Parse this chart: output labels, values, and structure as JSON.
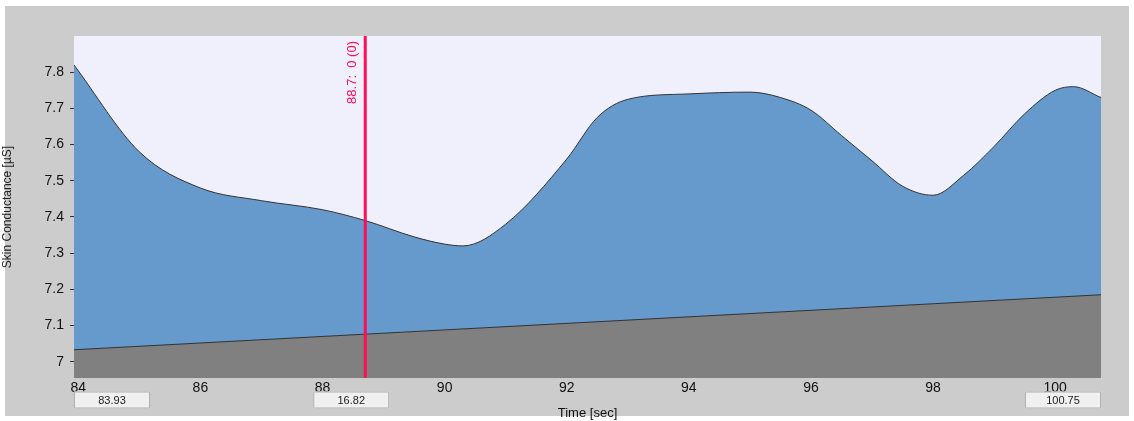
{
  "chart_data": {
    "type": "area",
    "xlabel": "Time [sec]",
    "ylabel": "Skin Conductance [µS]",
    "xlim": [
      83.93,
      100.75
    ],
    "ylim": [
      6.955,
      7.9
    ],
    "xticks": [
      84,
      86,
      88,
      90,
      92,
      94,
      96,
      98,
      100
    ],
    "yticks": [
      7,
      7.1,
      7.2,
      7.3,
      7.4,
      7.5,
      7.6,
      7.7,
      7.8
    ],
    "series": [
      {
        "color": "#6699cc",
        "x": [
          83.93,
          85,
          86,
          87,
          88,
          88.7,
          89.5,
          90,
          90.3,
          91,
          92,
          92.5,
          93,
          94,
          95,
          95.5,
          96,
          96.5,
          97,
          97.5,
          98,
          98.5,
          99,
          99.5,
          100,
          100.3,
          100.75
        ],
        "values": [
          7.82,
          7.58,
          7.48,
          7.445,
          7.42,
          7.39,
          7.345,
          7.325,
          7.32,
          7.38,
          7.56,
          7.675,
          7.725,
          7.74,
          7.745,
          7.73,
          7.695,
          7.625,
          7.555,
          7.485,
          7.46,
          7.515,
          7.595,
          7.685,
          7.75,
          7.76,
          7.73
        ]
      },
      {
        "color": "#808080",
        "x": [
          83.93,
          100.75
        ],
        "values": [
          7.033,
          7.185
        ]
      }
    ],
    "ref_lines": [
      {
        "axis": "x",
        "value": 88.7,
        "label": "88.7:  0 (0)",
        "color": "#ff0d57"
      }
    ],
    "annotations": [
      "83.93",
      "16.82",
      "100.75"
    ],
    "grid": false,
    "legend": false
  }
}
